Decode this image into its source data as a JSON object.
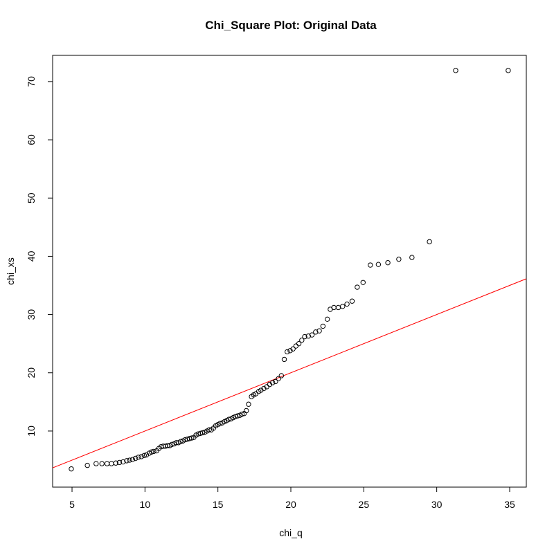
{
  "chart_data": {
    "type": "scatter",
    "title": "Chi_Square Plot: Original Data",
    "x_label": "chi_q",
    "y_label": "chi_xs",
    "xlim": [
      3.67,
      36.14
    ],
    "ylim": [
      0.37,
      74.5
    ],
    "xticks": [
      5,
      10,
      15,
      20,
      25,
      30,
      35
    ],
    "yticks": [
      10,
      20,
      30,
      40,
      50,
      60,
      70
    ],
    "point_color": "#000000",
    "reference_line": {
      "intercept": 0,
      "slope": 1,
      "color": "#ff0000"
    },
    "x": [
      4.95,
      6.05,
      6.65,
      7.05,
      7.4,
      7.7,
      8.0,
      8.25,
      8.5,
      8.75,
      8.95,
      9.15,
      9.35,
      9.55,
      9.75,
      9.95,
      10.1,
      10.3,
      10.45,
      10.6,
      10.8,
      10.95,
      11.1,
      11.25,
      11.4,
      11.55,
      11.7,
      11.85,
      12.0,
      12.15,
      12.3,
      12.45,
      12.6,
      12.75,
      12.9,
      13.05,
      13.2,
      13.35,
      13.5,
      13.65,
      13.8,
      13.95,
      14.1,
      14.25,
      14.4,
      14.55,
      14.7,
      14.85,
      15.0,
      15.15,
      15.3,
      15.45,
      15.6,
      15.75,
      15.9,
      16.05,
      16.2,
      16.35,
      16.5,
      16.65,
      16.8,
      16.95,
      17.1,
      17.3,
      17.45,
      17.6,
      17.8,
      17.95,
      18.15,
      18.35,
      18.55,
      18.75,
      18.95,
      19.15,
      19.35,
      19.55,
      19.75,
      19.95,
      20.15,
      20.35,
      20.55,
      20.75,
      20.95,
      21.2,
      21.45,
      21.7,
      21.95,
      22.2,
      22.5,
      22.7,
      22.95,
      23.25,
      23.55,
      23.85,
      24.2,
      24.55,
      24.95,
      25.45,
      26.0,
      26.65,
      27.4,
      28.3,
      29.5,
      31.3,
      34.9
    ],
    "values": [
      3.5,
      4.1,
      4.4,
      4.4,
      4.4,
      4.4,
      4.5,
      4.6,
      4.7,
      4.9,
      5.0,
      5.1,
      5.3,
      5.5,
      5.6,
      5.8,
      5.9,
      6.2,
      6.4,
      6.5,
      6.6,
      7.0,
      7.3,
      7.4,
      7.4,
      7.5,
      7.5,
      7.7,
      7.8,
      8.0,
      8.0,
      8.2,
      8.3,
      8.5,
      8.6,
      8.7,
      8.8,
      8.9,
      9.3,
      9.5,
      9.6,
      9.7,
      9.8,
      10.0,
      10.2,
      10.2,
      10.5,
      10.9,
      11.1,
      11.3,
      11.4,
      11.6,
      11.8,
      12.0,
      12.1,
      12.3,
      12.5,
      12.6,
      12.7,
      12.9,
      13.0,
      13.5,
      14.6,
      15.9,
      16.2,
      16.4,
      16.8,
      17.0,
      17.3,
      17.6,
      18.0,
      18.3,
      18.5,
      19.0,
      19.5,
      22.3,
      23.6,
      23.8,
      24.1,
      24.6,
      25.0,
      25.6,
      26.2,
      26.3,
      26.5,
      27.0,
      27.2,
      28.0,
      29.2,
      30.9,
      31.2,
      31.2,
      31.4,
      31.8,
      32.3,
      34.7,
      35.5,
      38.5,
      38.6,
      38.9,
      39.5,
      39.8,
      42.5,
      71.9,
      71.9
    ]
  }
}
